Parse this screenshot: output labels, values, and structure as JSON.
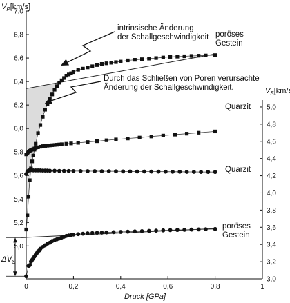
{
  "chart_data": {
    "type": "scatter",
    "axes": {
      "x": {
        "label": "Druck [GPa]",
        "ticks": [
          "0",
          "0,2",
          "0,4",
          "0,6",
          "0,8",
          "1"
        ],
        "range": [
          0,
          1
        ]
      },
      "y_left": {
        "label_main": "V",
        "label_sub": "P",
        "label_unit": "[km/s]",
        "ticks": [
          "5,0",
          "5,2",
          "5,4",
          "5,6",
          "5,8",
          "6,0",
          "6,2",
          "6,4",
          "6,6",
          "6,8",
          "7,0"
        ],
        "range": [
          4.72,
          7.0
        ]
      },
      "y_right": {
        "label_main": "V",
        "label_sub": "S",
        "label_unit": "[km/s]",
        "ticks": [
          "3,0",
          "3,2",
          "3,4",
          "3,6",
          "3,8",
          "4,0",
          "4,2",
          "4,4",
          "4,6",
          "4,8",
          "5,0"
        ],
        "range": [
          3.0,
          5.08
        ]
      }
    },
    "annotations": {
      "intrinsic": [
        "intrinsische Änderung",
        "der Schallgeschwindigkeit"
      ],
      "pores": [
        "Durch das Schließen von Poren verursachte",
        "Änderung der Schallgeschwindigkeit."
      ],
      "delta_main": "ΔV",
      "delta_sub": "S"
    },
    "series": [
      {
        "name": "poröses Gestein",
        "label": [
          "poröses",
          "Gestein"
        ],
        "axis": "left",
        "marker": "square",
        "x": [
          0.0,
          0.005,
          0.01,
          0.015,
          0.02,
          0.025,
          0.03,
          0.035,
          0.04,
          0.05,
          0.06,
          0.07,
          0.08,
          0.09,
          0.1,
          0.11,
          0.12,
          0.13,
          0.14,
          0.15,
          0.16,
          0.17,
          0.18,
          0.19,
          0.2,
          0.22,
          0.24,
          0.26,
          0.28,
          0.3,
          0.32,
          0.34,
          0.36,
          0.38,
          0.4,
          0.43,
          0.46,
          0.49,
          0.52,
          0.55,
          0.58,
          0.61,
          0.64,
          0.67,
          0.7,
          0.73,
          0.76,
          0.8
        ],
        "y": [
          5.14,
          5.26,
          5.42,
          5.56,
          5.66,
          5.72,
          5.77,
          5.82,
          5.87,
          5.96,
          6.03,
          6.1,
          6.16,
          6.21,
          6.25,
          6.29,
          6.33,
          6.36,
          6.39,
          6.41,
          6.43,
          6.45,
          6.46,
          6.47,
          6.48,
          6.5,
          6.51,
          6.52,
          6.53,
          6.54,
          6.55,
          6.555,
          6.56,
          6.565,
          6.57,
          6.58,
          6.585,
          6.59,
          6.595,
          6.6,
          6.605,
          6.61,
          6.612,
          6.615,
          6.618,
          6.62,
          6.622,
          6.625
        ]
      },
      {
        "name": "Quarzit",
        "label": [
          "Quarzit"
        ],
        "axis": "left",
        "marker": "square",
        "x": [
          0.0,
          0.005,
          0.01,
          0.015,
          0.02,
          0.025,
          0.03,
          0.035,
          0.04,
          0.05,
          0.06,
          0.07,
          0.08,
          0.09,
          0.1,
          0.11,
          0.12,
          0.13,
          0.14,
          0.15,
          0.17,
          0.19,
          0.22,
          0.26,
          0.3,
          0.34,
          0.38,
          0.43,
          0.48,
          0.53,
          0.58,
          0.63,
          0.68,
          0.73,
          0.8
        ],
        "y": [
          5.78,
          5.79,
          5.8,
          5.81,
          5.815,
          5.82,
          5.825,
          5.83,
          5.835,
          5.84,
          5.845,
          5.85,
          5.852,
          5.854,
          5.856,
          5.858,
          5.86,
          5.862,
          5.864,
          5.866,
          5.87,
          5.873,
          5.878,
          5.885,
          5.892,
          5.9,
          5.907,
          5.915,
          5.923,
          5.932,
          5.94,
          5.948,
          5.956,
          5.964,
          5.975
        ]
      },
      {
        "name": "Quarzit",
        "label": [
          "Quarzit"
        ],
        "axis": "right",
        "marker": "circle",
        "x": [
          0.0,
          0.005,
          0.01,
          0.015,
          0.02,
          0.03,
          0.04,
          0.05,
          0.06,
          0.07,
          0.08,
          0.09,
          0.1,
          0.12,
          0.14,
          0.16,
          0.18,
          0.2,
          0.23,
          0.26,
          0.29,
          0.32,
          0.35,
          0.38,
          0.41,
          0.44,
          0.47,
          0.5,
          0.53,
          0.56,
          0.59,
          0.62,
          0.65,
          0.68,
          0.71,
          0.74,
          0.77,
          0.8
        ],
        "y": [
          4.22,
          4.25,
          4.26,
          4.265,
          4.265,
          4.262,
          4.262,
          4.262,
          4.262,
          4.26,
          4.26,
          4.26,
          4.258,
          4.258,
          4.256,
          4.256,
          4.255,
          4.254,
          4.254,
          4.253,
          4.253,
          4.252,
          4.252,
          4.251,
          4.25,
          4.25,
          4.249,
          4.249,
          4.248,
          4.248,
          4.247,
          4.246,
          4.246,
          4.245,
          4.245,
          4.244,
          4.244,
          4.243
        ]
      },
      {
        "name": "poröses Gestein",
        "label": [
          "poröses",
          "Gestein"
        ],
        "axis": "right",
        "marker": "circle",
        "x": [
          0.0,
          0.01,
          0.015,
          0.02,
          0.025,
          0.03,
          0.035,
          0.04,
          0.045,
          0.05,
          0.055,
          0.06,
          0.07,
          0.08,
          0.09,
          0.1,
          0.11,
          0.12,
          0.13,
          0.14,
          0.15,
          0.16,
          0.17,
          0.18,
          0.19,
          0.2,
          0.22,
          0.24,
          0.26,
          0.28,
          0.3,
          0.32,
          0.34,
          0.37,
          0.4,
          0.43,
          0.46,
          0.49,
          0.52,
          0.55,
          0.58,
          0.61,
          0.64,
          0.67,
          0.7,
          0.73,
          0.76,
          0.8
        ],
        "y": [
          3.03,
          3.15,
          3.16,
          3.2,
          3.22,
          3.24,
          3.26,
          3.28,
          3.3,
          3.32,
          3.33,
          3.35,
          3.37,
          3.39,
          3.41,
          3.42,
          3.44,
          3.45,
          3.46,
          3.47,
          3.48,
          3.49,
          3.5,
          3.505,
          3.51,
          3.515,
          3.52,
          3.525,
          3.53,
          3.533,
          3.536,
          3.538,
          3.54,
          3.543,
          3.546,
          3.549,
          3.552,
          3.555,
          3.558,
          3.561,
          3.564,
          3.567,
          3.569,
          3.571,
          3.573,
          3.575,
          3.577,
          3.58
        ]
      }
    ],
    "reference_lines": [
      {
        "axis": "left",
        "x": [
          0,
          0.8
        ],
        "y": [
          6.34,
          6.635
        ]
      },
      {
        "axis": "right",
        "x": [
          -0.02,
          0.8
        ],
        "y": [
          3.48,
          3.585
        ]
      }
    ],
    "delta_marker": {
      "axis": "right",
      "y_from": 3.03,
      "y_to": 3.48
    }
  }
}
